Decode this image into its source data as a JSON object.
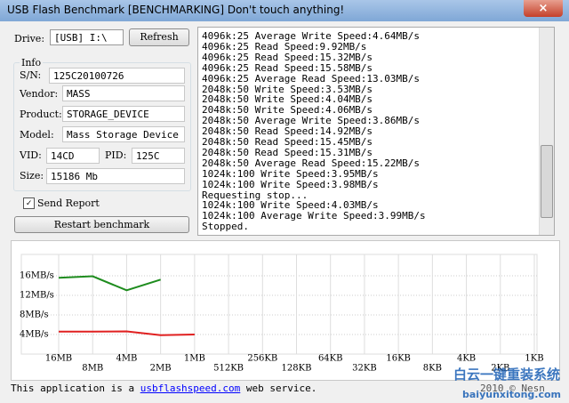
{
  "window": {
    "title": "USB Flash Benchmark [BENCHMARKING] Don't touch anything!"
  },
  "drive": {
    "label": "Drive:",
    "value": "[USB] I:\\",
    "button": "Refresh"
  },
  "info": {
    "title": "Info",
    "fields": [
      {
        "label": "S/N:",
        "value": "125C20100726"
      },
      {
        "label": "Vendor:",
        "value": "MASS"
      },
      {
        "label": "Product:",
        "value": "STORAGE_DEVICE"
      },
      {
        "label": "Model:",
        "value": "Mass Storage Device"
      },
      {
        "label": "VID:",
        "value": "14CD"
      },
      {
        "label": "PID:",
        "value": "125C"
      },
      {
        "label": "Size:",
        "value": "15186 Mb"
      }
    ]
  },
  "send_report": "Send Report",
  "restart_button": "Restart benchmark",
  "log": [
    "4096k:25 Average Write Speed:4.64MB/s",
    "4096k:25 Read Speed:9.92MB/s",
    "4096k:25 Read Speed:15.32MB/s",
    "4096k:25 Read Speed:15.58MB/s",
    "4096k:25 Average Read Speed:13.03MB/s",
    "2048k:50 Write Speed:3.53MB/s",
    "2048k:50 Write Speed:4.04MB/s",
    "2048k:50 Write Speed:4.06MB/s",
    "2048k:50 Average Write Speed:3.86MB/s",
    "2048k:50 Read Speed:14.92MB/s",
    "2048k:50 Read Speed:15.45MB/s",
    "2048k:50 Read Speed:15.31MB/s",
    "2048k:50 Average Read Speed:15.22MB/s",
    "1024k:100 Write Speed:3.95MB/s",
    "1024k:100 Write Speed:3.98MB/s",
    "Requesting stop...",
    "1024k:100 Write Speed:4.03MB/s",
    "1024k:100 Average Write Speed:3.99MB/s",
    "Stopped."
  ],
  "footer": {
    "before": "This application is a ",
    "link": "usbflashspeed.com",
    "after": " web service.",
    "copyright": "2010 © Nesn"
  },
  "watermark": {
    "cn": "白云一键重装系统",
    "url": "baiyunxitong.com"
  },
  "chart_data": {
    "type": "line",
    "categories": [
      "16MB",
      "8MB",
      "4MB",
      "2MB",
      "1MB",
      "512KB",
      "256KB",
      "128KB",
      "64KB",
      "32KB",
      "16KB",
      "8KB",
      "4KB",
      "2KB",
      "1KB"
    ],
    "series": [
      {
        "color": "#1e8c1e",
        "values": [
          15.6,
          15.9,
          13.03,
          15.22,
          null,
          null,
          null,
          null,
          null,
          null,
          null,
          null,
          null,
          null,
          null
        ]
      },
      {
        "color": "#e02020",
        "values": [
          4.6,
          4.6,
          4.64,
          3.86,
          3.99,
          null,
          null,
          null,
          null,
          null,
          null,
          null,
          null,
          null,
          null
        ]
      }
    ],
    "ylim": [
      0,
      20
    ],
    "yticks": [
      {
        "value": 4,
        "label": "4MB/s"
      },
      {
        "value": 8,
        "label": "8MB/s"
      },
      {
        "value": 12,
        "label": "12MB/s"
      },
      {
        "value": 16,
        "label": "16MB/s"
      }
    ],
    "grid": true
  }
}
